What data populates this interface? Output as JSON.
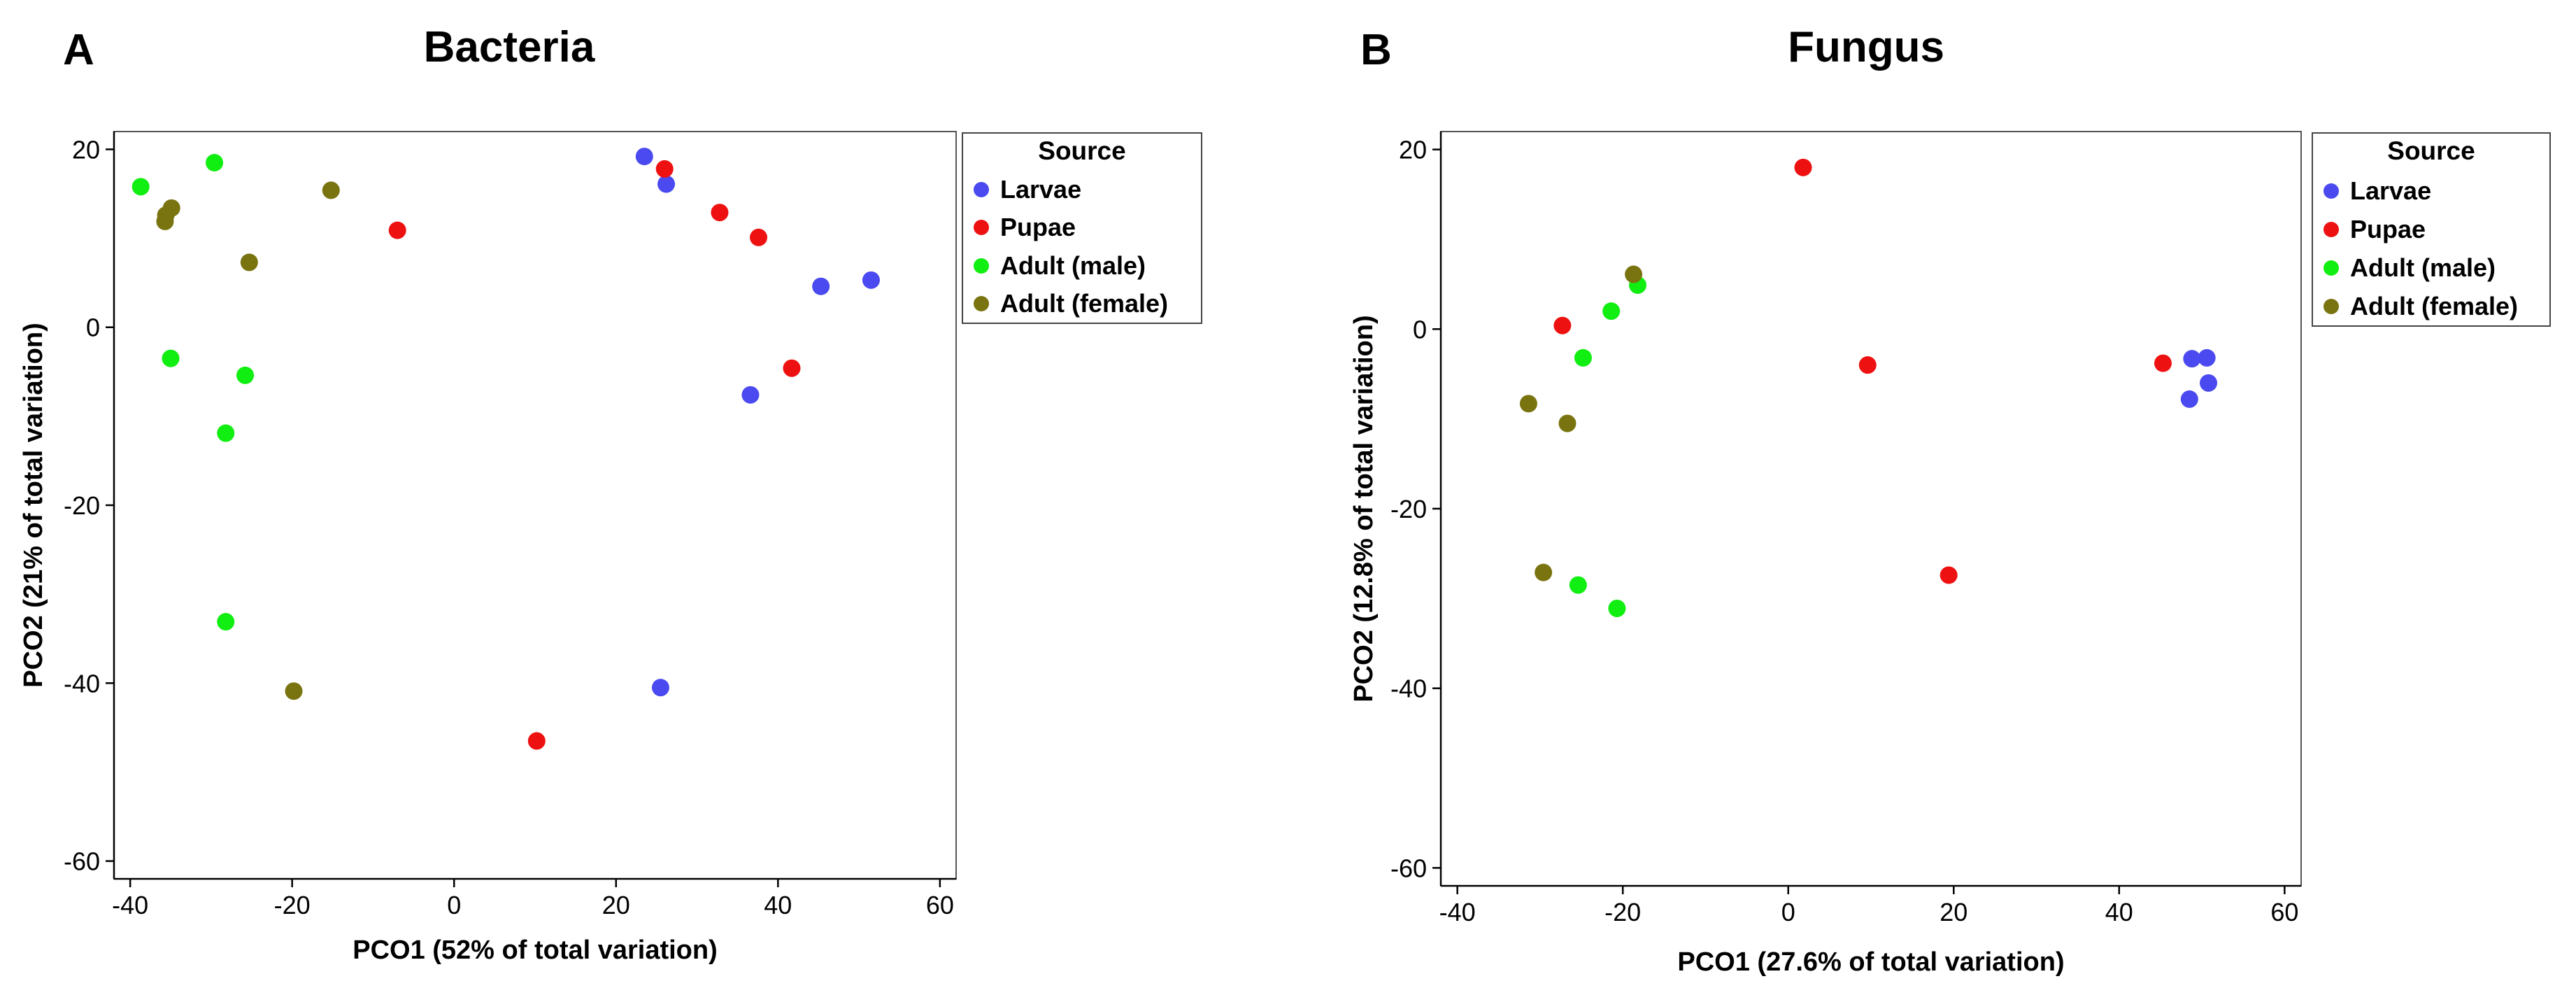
{
  "colors": {
    "larvae": "#4a4af0",
    "pupae": "#ee1111",
    "adult_male": "#11ee11",
    "adult_female": "#7a7410",
    "axis": "#000000",
    "frame": "#555555"
  },
  "chart_data": [
    {
      "type": "scatter",
      "panel_label": "A",
      "title": "Bacteria",
      "xlabel": "PCO1 (52% of total variation)",
      "ylabel": "PCO2 (21% of total variation)",
      "xlim": [
        -42,
        62
      ],
      "ylim": [
        -62,
        22
      ],
      "xticks": [
        -40,
        -20,
        0,
        20,
        40,
        60
      ],
      "yticks": [
        20,
        0,
        -20,
        -40,
        -60
      ],
      "xtick_labels": [
        "-40",
        "-20",
        "0",
        "20",
        "40",
        "60"
      ],
      "ytick_labels": [
        "20",
        "0",
        "-20",
        "-40",
        "-60"
      ],
      "grid": false,
      "legend": {
        "title": "Source",
        "position": "outside-right",
        "entries": [
          "Larvae",
          "Pupae",
          "Adult (male)",
          "Adult (female)"
        ]
      },
      "series": [
        {
          "name": "Larvae",
          "color_key": "larvae",
          "points": [
            [
              23.5,
              19.2
            ],
            [
              26.2,
              16.1
            ],
            [
              45.3,
              4.6
            ],
            [
              51.5,
              5.3
            ],
            [
              36.6,
              -7.6
            ],
            [
              25.5,
              -40.5
            ]
          ]
        },
        {
          "name": "Pupae",
          "color_key": "pupae",
          "points": [
            [
              26.0,
              17.8
            ],
            [
              32.8,
              12.9
            ],
            [
              37.6,
              10.1
            ],
            [
              41.7,
              -4.6
            ],
            [
              -7.0,
              10.9
            ],
            [
              10.2,
              -46.5
            ]
          ]
        },
        {
          "name": "Adult (male)",
          "color_key": "adult_male",
          "points": [
            [
              -38.7,
              15.8
            ],
            [
              -29.6,
              18.5
            ],
            [
              -35.0,
              -3.5
            ],
            [
              -25.8,
              -5.4
            ],
            [
              -28.2,
              -11.9
            ],
            [
              -28.2,
              -33.1
            ]
          ]
        },
        {
          "name": "Adult (female)",
          "color_key": "adult_female",
          "points": [
            [
              -35.6,
              12.6
            ],
            [
              -35.7,
              11.9
            ],
            [
              -34.9,
              13.4
            ],
            [
              -15.2,
              15.4
            ],
            [
              -25.3,
              7.3
            ],
            [
              -19.8,
              -40.9
            ]
          ]
        }
      ]
    },
    {
      "type": "scatter",
      "panel_label": "B",
      "title": "Fungus",
      "xlabel": "PCO1 (27.6% of total variation)",
      "ylabel": "PCO2 (12.8% of total variation)",
      "xlim": [
        -42,
        62
      ],
      "ylim": [
        -62,
        22
      ],
      "xticks": [
        -40,
        -20,
        0,
        20,
        40,
        60
      ],
      "yticks": [
        20,
        0,
        -20,
        -40,
        -60
      ],
      "xtick_labels": [
        "-40",
        "-20",
        "0",
        "20",
        "40",
        "60"
      ],
      "ytick_labels": [
        "20",
        "0",
        "-20",
        "-40",
        "-60"
      ],
      "grid": false,
      "legend": {
        "title": "Source",
        "position": "outside-right",
        "entries": [
          "Larvae",
          "Pupae",
          "Adult (male)",
          "Adult (female)"
        ]
      },
      "series": [
        {
          "name": "Larvae",
          "color_key": "larvae",
          "points": [
            [
              48.8,
              -3.3
            ],
            [
              50.6,
              -3.2
            ],
            [
              50.8,
              -6.0
            ],
            [
              48.5,
              -7.8
            ]
          ]
        },
        {
          "name": "Pupae",
          "color_key": "pupae",
          "points": [
            [
              1.8,
              18.0
            ],
            [
              -27.3,
              0.4
            ],
            [
              9.6,
              -4.0
            ],
            [
              45.3,
              -3.8
            ],
            [
              19.4,
              -27.4
            ]
          ]
        },
        {
          "name": "Adult (male)",
          "color_key": "adult_male",
          "points": [
            [
              -21.4,
              2.0
            ],
            [
              -18.2,
              4.9
            ],
            [
              -24.8,
              -3.2
            ],
            [
              -25.4,
              -28.5
            ],
            [
              -20.7,
              -31.1
            ]
          ]
        },
        {
          "name": "Adult (female)",
          "color_key": "adult_female",
          "points": [
            [
              -18.7,
              6.1
            ],
            [
              -31.4,
              -8.3
            ],
            [
              -26.7,
              -10.5
            ],
            [
              -29.6,
              -27.1
            ]
          ]
        }
      ]
    }
  ]
}
